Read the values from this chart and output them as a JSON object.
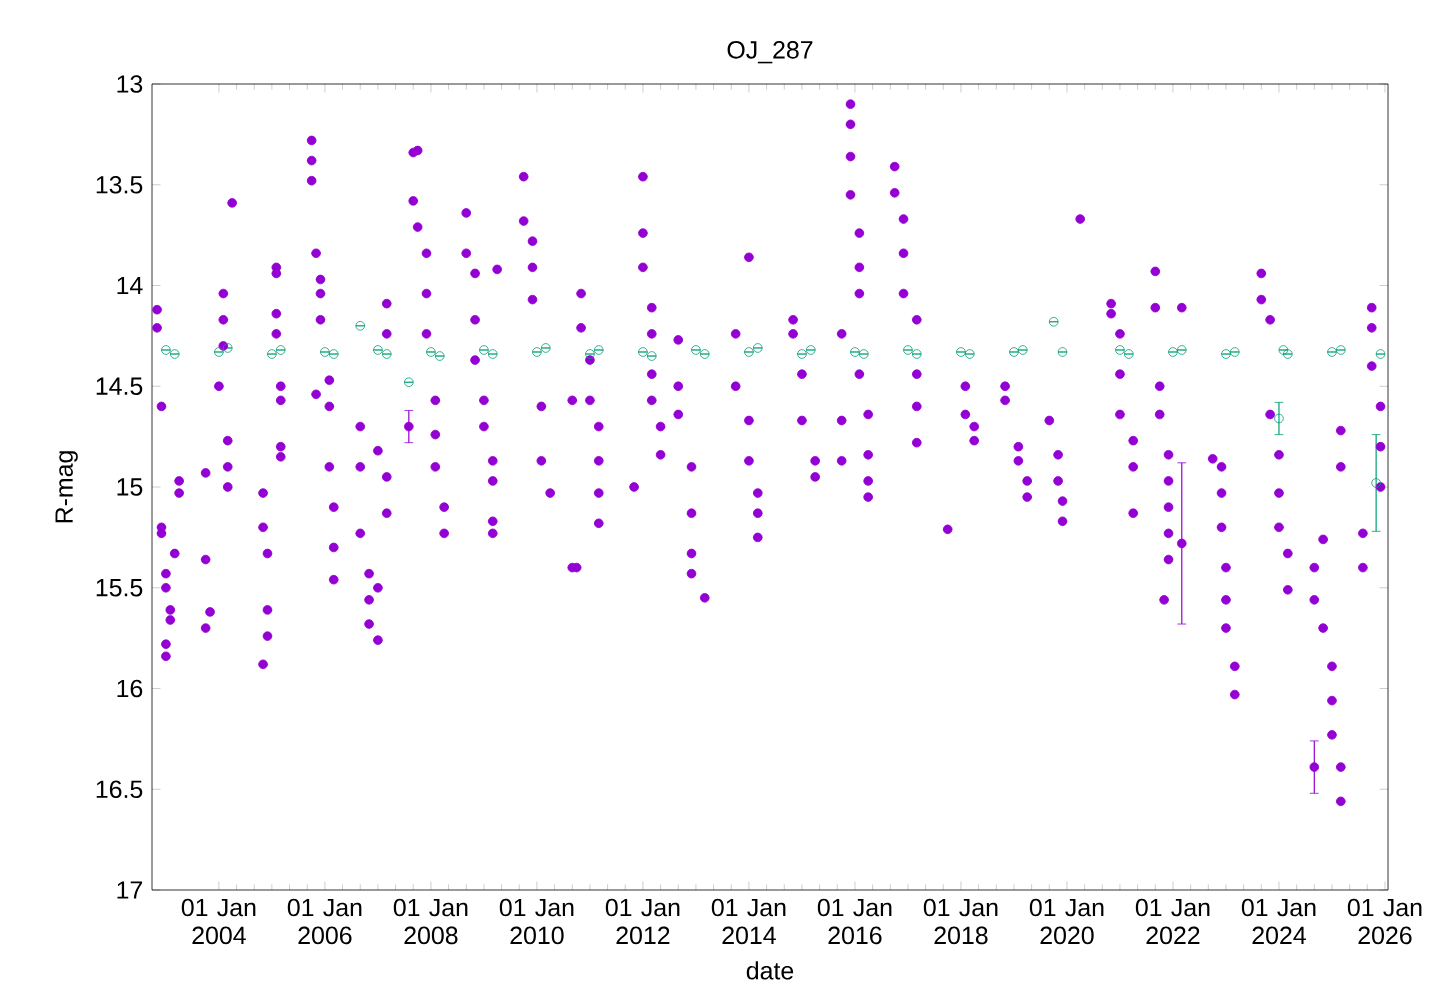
{
  "chart_data": {
    "type": "scatter",
    "title": "OJ_287",
    "xlabel": "date",
    "ylabel": "R-mag",
    "xlim": [
      "2002-09-27",
      "2026-01-22"
    ],
    "ylim": [
      17,
      13
    ],
    "yticks": [
      13,
      13.5,
      14,
      14.5,
      15,
      15.5,
      16,
      16.5,
      17
    ],
    "xticks": [
      {
        "value": "2004-01-01",
        "label": "01 Jan 2004"
      },
      {
        "value": "2006-01-01",
        "label": "01 Jan 2006"
      },
      {
        "value": "2008-01-01",
        "label": "01 Jan 2008"
      },
      {
        "value": "2010-01-01",
        "label": "01 Jan 2010"
      },
      {
        "value": "2012-01-01",
        "label": "01 Jan 2012"
      },
      {
        "value": "2014-01-01",
        "label": "01 Jan 2014"
      },
      {
        "value": "2016-01-01",
        "label": "01 Jan 2016"
      },
      {
        "value": "2018-01-01",
        "label": "01 Jan 2018"
      },
      {
        "value": "2020-01-01",
        "label": "01 Jan 2020"
      },
      {
        "value": "2022-01-01",
        "label": "01 Jan 2022"
      },
      {
        "value": "2024-01-01",
        "label": "01 Jan 2024"
      },
      {
        "value": "2026-01-01",
        "label": "01 Jan 2026"
      }
    ],
    "marker": "circle",
    "grid": false,
    "series": [
      {
        "color": "#9400d3",
        "x": [
          "2007-08",
          "2022-03",
          "2024-09",
          "2002-11",
          "2002-11",
          "2002-12",
          "2002-12",
          "2002-12",
          "2003-01",
          "2003-01",
          "2003-01",
          "2003-01",
          "2003-02",
          "2003-02",
          "2003-03",
          "2003-04",
          "2003-04",
          "2003-10",
          "2003-10",
          "2003-10",
          "2003-11",
          "2004-01",
          "2004-02",
          "2004-02",
          "2004-02",
          "2004-03",
          "2004-03",
          "2004-03",
          "2004-04",
          "2004-11",
          "2004-11",
          "2004-11",
          "2004-12",
          "2004-12",
          "2004-12",
          "2005-02",
          "2005-02",
          "2005-02",
          "2005-02",
          "2005-03",
          "2005-03",
          "2005-03",
          "2005-03",
          "2005-10",
          "2005-10",
          "2005-10",
          "2005-11",
          "2005-11",
          "2005-12",
          "2005-12",
          "2005-12",
          "2006-02",
          "2006-02",
          "2006-02",
          "2006-03",
          "2006-03",
          "2006-03",
          "2006-09",
          "2006-09",
          "2006-09",
          "2006-11",
          "2006-11",
          "2006-11",
          "2007-01",
          "2007-01",
          "2007-01",
          "2007-03",
          "2007-03",
          "2007-03",
          "2007-03",
          "2007-09",
          "2007-09",
          "2007-10",
          "2007-10",
          "2007-12",
          "2007-12",
          "2007-12",
          "2008-02",
          "2008-02",
          "2008-02",
          "2008-04",
          "2008-04",
          "2008-09",
          "2008-09",
          "2008-11",
          "2008-11",
          "2008-11",
          "2009-01",
          "2009-01",
          "2009-03",
          "2009-03",
          "2009-03",
          "2009-03",
          "2009-04",
          "2009-10",
          "2009-10",
          "2009-12",
          "2009-12",
          "2009-12",
          "2010-02",
          "2010-02",
          "2010-04",
          "2010-09",
          "2010-09",
          "2010-11",
          "2010-11",
          "2011-01",
          "2011-01",
          "2011-03",
          "2011-03",
          "2011-03",
          "2011-03",
          "2010-10",
          "2011-11",
          "2012-01",
          "2012-01",
          "2012-01",
          "2012-03",
          "2012-03",
          "2012-03",
          "2012-03",
          "2012-05",
          "2012-05",
          "2012-09",
          "2012-09",
          "2012-09",
          "2012-12",
          "2012-12",
          "2012-12",
          "2012-12",
          "2013-03",
          "2013-10",
          "2013-10",
          "2014-01",
          "2014-01",
          "2014-01",
          "2014-03",
          "2014-03",
          "2014-03",
          "2014-11",
          "2014-11",
          "2015-01",
          "2015-01",
          "2015-04",
          "2015-04",
          "2015-10",
          "2015-10",
          "2015-10",
          "2015-12",
          "2015-12",
          "2015-12",
          "2015-12",
          "2016-02",
          "2016-02",
          "2016-02",
          "2016-02",
          "2016-04",
          "2016-04",
          "2016-04",
          "2016-04",
          "2016-10",
          "2016-10",
          "2016-12",
          "2016-12",
          "2016-12",
          "2017-03",
          "2017-03",
          "2017-03",
          "2017-03",
          "2017-10",
          "2018-02",
          "2018-02",
          "2018-04",
          "2018-04",
          "2018-11",
          "2018-11",
          "2019-02",
          "2019-02",
          "2019-04",
          "2019-04",
          "2019-09",
          "2019-11",
          "2019-11",
          "2019-12",
          "2019-12",
          "2020-04",
          "2020-11",
          "2020-11",
          "2021-01",
          "2021-01",
          "2021-01",
          "2021-04",
          "2021-04",
          "2021-04",
          "2021-09",
          "2021-09",
          "2021-10",
          "2021-10",
          "2021-12",
          "2021-12",
          "2021-12",
          "2021-12",
          "2021-12",
          "2021-11",
          "2022-03",
          "2022-10",
          "2022-12",
          "2022-12",
          "2022-12",
          "2023-01",
          "2023-01",
          "2023-01",
          "2023-03",
          "2023-03",
          "2023-09",
          "2023-09",
          "2023-11",
          "2023-11",
          "2024-01",
          "2024-01",
          "2024-01",
          "2024-03",
          "2024-03",
          "2024-09",
          "2024-09",
          "2024-11",
          "2024-11",
          "2025-01",
          "2025-01",
          "2025-01",
          "2025-03",
          "2025-03",
          "2025-03",
          "2025-03",
          "2025-08",
          "2025-08",
          "2025-10",
          "2025-10",
          "2025-10",
          "2025-12",
          "2025-12",
          "2025-12"
        ],
        "values": [
          14.7,
          15.28,
          16.39,
          14.12,
          14.21,
          14.6,
          15.2,
          15.23,
          15.43,
          15.5,
          15.84,
          15.78,
          15.61,
          15.66,
          15.33,
          14.97,
          15.03,
          14.93,
          15.36,
          15.7,
          15.62,
          14.5,
          14.04,
          14.17,
          14.3,
          14.77,
          14.9,
          15.0,
          13.59,
          15.03,
          15.2,
          15.88,
          15.61,
          15.74,
          15.33,
          13.91,
          13.94,
          14.14,
          14.24,
          14.5,
          14.57,
          14.8,
          14.85,
          13.28,
          13.38,
          13.48,
          13.84,
          14.54,
          13.97,
          14.04,
          14.17,
          14.47,
          14.6,
          14.9,
          15.1,
          15.3,
          15.46,
          14.7,
          14.9,
          15.23,
          15.43,
          15.56,
          15.68,
          15.76,
          15.5,
          14.82,
          14.09,
          14.24,
          14.95,
          15.13,
          13.34,
          13.58,
          13.33,
          13.71,
          13.84,
          14.04,
          14.24,
          14.57,
          14.74,
          14.9,
          15.1,
          15.23,
          13.64,
          13.84,
          13.94,
          14.17,
          14.37,
          14.57,
          14.7,
          14.87,
          14.97,
          15.17,
          15.23,
          13.92,
          13.46,
          13.68,
          13.78,
          13.91,
          14.07,
          14.6,
          14.87,
          15.03,
          14.57,
          15.4,
          14.04,
          14.21,
          14.37,
          14.57,
          14.7,
          14.87,
          15.03,
          15.18,
          15.4,
          15.0,
          13.46,
          13.74,
          13.91,
          14.11,
          14.24,
          14.44,
          14.57,
          14.7,
          14.84,
          14.27,
          14.5,
          14.64,
          14.9,
          15.13,
          15.33,
          15.43,
          15.55,
          14.24,
          14.5,
          13.86,
          14.67,
          14.87,
          15.03,
          15.13,
          15.25,
          14.17,
          14.24,
          14.44,
          14.67,
          14.87,
          14.95,
          14.24,
          14.67,
          14.87,
          13.1,
          13.2,
          13.36,
          13.55,
          13.74,
          13.91,
          14.04,
          14.44,
          14.64,
          14.84,
          14.97,
          15.05,
          13.41,
          13.54,
          13.67,
          13.84,
          14.04,
          14.17,
          14.44,
          14.6,
          14.78,
          15.21,
          14.5,
          14.64,
          14.7,
          14.77,
          14.5,
          14.57,
          14.8,
          14.87,
          14.97,
          15.05,
          14.67,
          14.84,
          14.97,
          15.07,
          15.17,
          13.67,
          14.09,
          14.14,
          14.24,
          14.44,
          14.64,
          14.77,
          14.9,
          15.13,
          13.93,
          14.11,
          14.5,
          14.64,
          14.84,
          14.97,
          15.1,
          15.23,
          15.36,
          15.56,
          14.11,
          14.86,
          14.9,
          15.03,
          15.2,
          15.4,
          15.56,
          15.7,
          15.89,
          16.03,
          13.94,
          14.07,
          14.17,
          14.64,
          14.84,
          15.03,
          15.2,
          15.33,
          15.51,
          15.4,
          15.56,
          15.26,
          15.7,
          15.89,
          16.06,
          16.23,
          16.39,
          16.56,
          14.72,
          14.9,
          15.4,
          15.23,
          14.11,
          14.21,
          14.4,
          14.6,
          14.8,
          15.0
        ],
        "errors": [
          0.08,
          0.4,
          0.13,
          null,
          null,
          null,
          null,
          null,
          null,
          null,
          null,
          null,
          null,
          null,
          null,
          null,
          null,
          null,
          null,
          null,
          null,
          null,
          null,
          null,
          null,
          null,
          null,
          null,
          null,
          null,
          null,
          null,
          null,
          null,
          null,
          null,
          null,
          null,
          null,
          null,
          null,
          null,
          null,
          null,
          null,
          null,
          null,
          null,
          null,
          null,
          null,
          null,
          null,
          null,
          null,
          null,
          null,
          null,
          null,
          null,
          null,
          null,
          null,
          null,
          null,
          null,
          null,
          null,
          null,
          null,
          null,
          null,
          null,
          null,
          null,
          null,
          null,
          null,
          null,
          null,
          null,
          null,
          null,
          null,
          null,
          null,
          null,
          null,
          null,
          null,
          null,
          null,
          null,
          null,
          null,
          null,
          null,
          null,
          null,
          null,
          null,
          null,
          null,
          null,
          null,
          null,
          null,
          null,
          null,
          null,
          null,
          null,
          null,
          null,
          null,
          null,
          null,
          null,
          null,
          null,
          null,
          null,
          null,
          null,
          null,
          null,
          null,
          null,
          null,
          null,
          null,
          null,
          null,
          null,
          null,
          null,
          null,
          null,
          null,
          null,
          null,
          null,
          null,
          null,
          null,
          null,
          null,
          null,
          null,
          null,
          null,
          null,
          null,
          null,
          null,
          null,
          null,
          null,
          null,
          null,
          null,
          null,
          null,
          null,
          null,
          null,
          null,
          null,
          null,
          null,
          null,
          null,
          null,
          null,
          null,
          null,
          null,
          null,
          null,
          null,
          null,
          null,
          null,
          null,
          null,
          null,
          null,
          null,
          null,
          null,
          null,
          null,
          null,
          null,
          null,
          null,
          null,
          null,
          null,
          null,
          null,
          null,
          null,
          null,
          null,
          null,
          null,
          null,
          null,
          null,
          null,
          null,
          null,
          null,
          null,
          null,
          null,
          null,
          null,
          null,
          null,
          null,
          null,
          null,
          null,
          null,
          null,
          null,
          null,
          null,
          null,
          null,
          null,
          null,
          null,
          null,
          null,
          null,
          null,
          null,
          null,
          null
        ]
      },
      {
        "color": "#009e73",
        "x": [
          "2024-01",
          "2025-11",
          "2003-01",
          "2003-03",
          "2004-01",
          "2004-03",
          "2005-01",
          "2005-03",
          "2006-01",
          "2006-03",
          "2006-09",
          "2007-01",
          "2007-03",
          "2007-08",
          "2008-01",
          "2008-03",
          "2009-01",
          "2009-03",
          "2010-01",
          "2010-03",
          "2011-01",
          "2011-03",
          "2012-01",
          "2012-03",
          "2013-01",
          "2013-03",
          "2014-01",
          "2014-03",
          "2015-01",
          "2015-03",
          "2016-01",
          "2016-03",
          "2017-01",
          "2017-03",
          "2018-01",
          "2018-03",
          "2019-01",
          "2019-03",
          "2019-10",
          "2019-12",
          "2021-01",
          "2021-03",
          "2022-01",
          "2022-03",
          "2023-01",
          "2023-03",
          "2024-02",
          "2024-03",
          "2025-01",
          "2025-03",
          "2025-12"
        ],
        "values": [
          14.66,
          14.98,
          14.32,
          14.34,
          14.33,
          14.31,
          14.34,
          14.32,
          14.33,
          14.34,
          14.2,
          14.32,
          14.34,
          14.48,
          14.33,
          14.35,
          14.32,
          14.34,
          14.33,
          14.31,
          14.34,
          14.32,
          14.33,
          14.35,
          14.32,
          14.34,
          14.33,
          14.31,
          14.34,
          14.32,
          14.33,
          14.34,
          14.32,
          14.34,
          14.33,
          14.34,
          14.33,
          14.32,
          14.18,
          14.33,
          14.32,
          14.34,
          14.33,
          14.32,
          14.34,
          14.33,
          14.32,
          14.34,
          14.33,
          14.32,
          14.34
        ],
        "errors": [
          0.08,
          0.24,
          null,
          null,
          null,
          null,
          null,
          null,
          null,
          null,
          null,
          null,
          null,
          null,
          null,
          null,
          null,
          null,
          null,
          null,
          null,
          null,
          null,
          null,
          null,
          null,
          null,
          null,
          null,
          null,
          null,
          null,
          null,
          null,
          null,
          null,
          null,
          null,
          null,
          null,
          null,
          null,
          null,
          null,
          null,
          null,
          null,
          null,
          null,
          null,
          null
        ]
      }
    ]
  }
}
